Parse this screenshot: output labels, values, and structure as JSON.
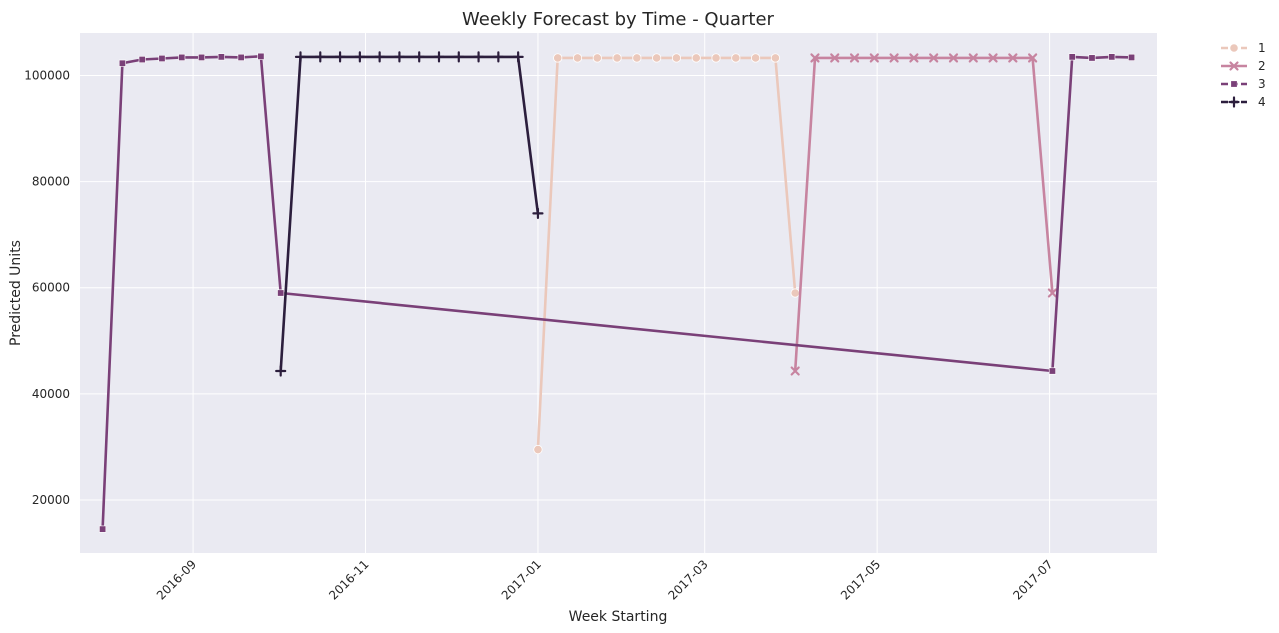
{
  "chart_data": {
    "type": "line",
    "title": "Weekly Forecast by Time - Quarter",
    "xlabel": "Week Starting",
    "ylabel": "Predicted Units",
    "x_is_date": true,
    "xlim": [
      "2016-07-23",
      "2017-08-08"
    ],
    "ylim": [
      10000,
      108000
    ],
    "x_ticks": [
      {
        "date": "2016-09-01",
        "label": "2016-09"
      },
      {
        "date": "2016-11-01",
        "label": "2016-11"
      },
      {
        "date": "2017-01-01",
        "label": "2017-01"
      },
      {
        "date": "2017-03-01",
        "label": "2017-03"
      },
      {
        "date": "2017-05-01",
        "label": "2017-05"
      },
      {
        "date": "2017-07-01",
        "label": "2017-07"
      }
    ],
    "y_ticks": [
      20000,
      40000,
      60000,
      80000,
      100000
    ],
    "grid": true,
    "legend_position": "outside-top-right",
    "background": "#eaeaf2",
    "grid_color": "#ffffff",
    "series": [
      {
        "name": "1",
        "color": "#ebc8bb",
        "marker": "circle",
        "dashed": true,
        "x": [
          "2017-01-01",
          "2017-01-08",
          "2017-01-15",
          "2017-01-22",
          "2017-01-29",
          "2017-02-05",
          "2017-02-12",
          "2017-02-19",
          "2017-02-26",
          "2017-03-05",
          "2017-03-12",
          "2017-03-19",
          "2017-03-26",
          "2017-04-02"
        ],
        "y": [
          29500,
          103300,
          103300,
          103300,
          103300,
          103300,
          103300,
          103300,
          103300,
          103300,
          103300,
          103300,
          103300,
          59000
        ]
      },
      {
        "name": "2",
        "color": "#c784a0",
        "marker": "x",
        "dashed": false,
        "x": [
          "2017-04-02",
          "2017-04-09",
          "2017-04-16",
          "2017-04-23",
          "2017-04-30",
          "2017-05-07",
          "2017-05-14",
          "2017-05-21",
          "2017-05-28",
          "2017-06-04",
          "2017-06-11",
          "2017-06-18",
          "2017-06-25",
          "2017-07-02"
        ],
        "y": [
          44300,
          103300,
          103300,
          103300,
          103300,
          103300,
          103300,
          103300,
          103300,
          103300,
          103300,
          103300,
          103300,
          59000
        ]
      },
      {
        "name": "3",
        "color": "#7a4078",
        "marker": "square",
        "dashed": true,
        "x": [
          "2016-07-31",
          "2016-08-07",
          "2016-08-14",
          "2016-08-21",
          "2016-08-28",
          "2016-09-04",
          "2016-09-11",
          "2016-09-18",
          "2016-09-25",
          "2016-10-02",
          "2017-07-02",
          "2017-07-09",
          "2017-07-16",
          "2017-07-23",
          "2017-07-30"
        ],
        "y": [
          14500,
          102300,
          103000,
          103200,
          103400,
          103400,
          103500,
          103400,
          103600,
          59000,
          44300,
          103500,
          103300,
          103500,
          103400
        ]
      },
      {
        "name": "4",
        "color": "#2c1e3d",
        "marker": "plus",
        "dashed": true,
        "x": [
          "2016-10-02",
          "2016-10-09",
          "2016-10-16",
          "2016-10-23",
          "2016-10-30",
          "2016-11-06",
          "2016-11-13",
          "2016-11-20",
          "2016-11-27",
          "2016-12-04",
          "2016-12-11",
          "2016-12-18",
          "2016-12-25",
          "2017-01-01"
        ],
        "y": [
          44300,
          103500,
          103500,
          103500,
          103500,
          103500,
          103500,
          103500,
          103500,
          103500,
          103500,
          103500,
          103500,
          74000
        ]
      }
    ]
  }
}
